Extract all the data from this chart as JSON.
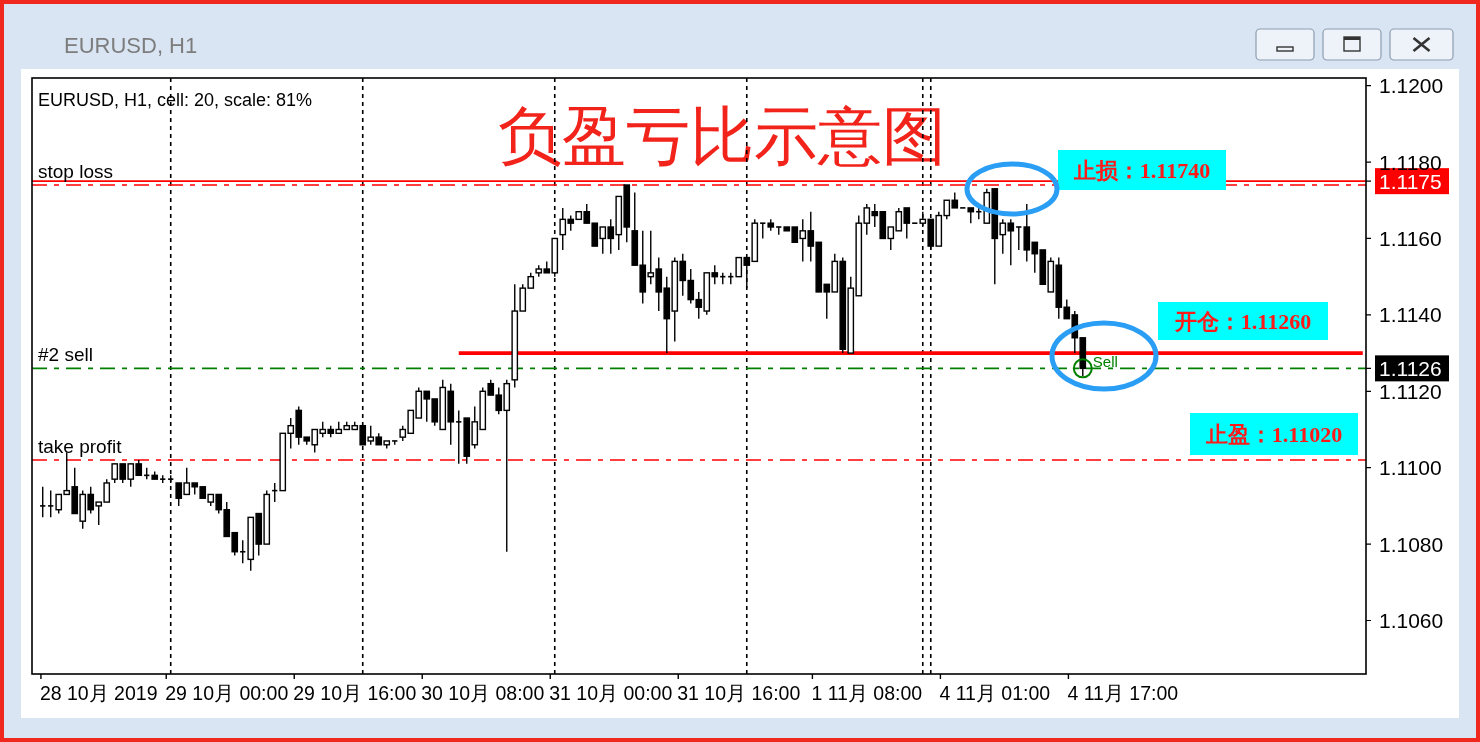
{
  "chart_data": {
    "type": "candlestick",
    "title": "负盈亏比示意图",
    "subtitle": "EURUSD, H1, cell: 20, scale: 81%",
    "annotations": [
      "EURUSD, H1",
      "止损：1.11740",
      "开仓：1.11260",
      "止盈：1.11020"
    ],
    "categories": [
      null,
      null,
      null,
      null,
      null,
      null,
      null,
      "28 10月 2019",
      null,
      null,
      null,
      null,
      null,
      null,
      null,
      null,
      null,
      null,
      null,
      null,
      null,
      null,
      null,
      "29 10月 00:00",
      null,
      null,
      null,
      null,
      null,
      null,
      null,
      null,
      null,
      null,
      null,
      null,
      null,
      null,
      null,
      "29 10月 16:00",
      null,
      null,
      null,
      null,
      null,
      null,
      null,
      null,
      null,
      null,
      null,
      null,
      null,
      null,
      null,
      "30 10月 08:00",
      null,
      null,
      null,
      null,
      null,
      null,
      null,
      null,
      null,
      null,
      null,
      null,
      null,
      null,
      null,
      "31 10月 00:00",
      null,
      null,
      null,
      null,
      null,
      null,
      null,
      null,
      null,
      null,
      null,
      null,
      null,
      null,
      null,
      "31 10月 16:00",
      null,
      null,
      null,
      null,
      null,
      null,
      null,
      null,
      null,
      null,
      null,
      null,
      null,
      null,
      null,
      "1 11月 08:00",
      null,
      null,
      null,
      null,
      null,
      null,
      null,
      null,
      null,
      null,
      null,
      null,
      null,
      null,
      null,
      "4 11月 01:00",
      null,
      null,
      null,
      null,
      null,
      null,
      null,
      null,
      null,
      null,
      null,
      null,
      null,
      null,
      null,
      "4 11月 17:00",
      null,
      null,
      null,
      null,
      null,
      null,
      null,
      null,
      null,
      null,
      null,
      null,
      null,
      null,
      null,
      null,
      null,
      null,
      null,
      null,
      null,
      null,
      null,
      null,
      null,
      null,
      null,
      null,
      null,
      null
    ],
    "ohlc": [
      [
        1.109,
        1.1095,
        1.1087,
        1.109
      ],
      [
        1.109,
        1.1094,
        1.1087,
        1.109
      ],
      [
        1.1089,
        1.1093,
        1.1088,
        1.1093
      ],
      [
        1.1093,
        1.1104,
        1.1093,
        1.1094
      ],
      [
        1.1095,
        1.11,
        1.1088,
        1.1088
      ],
      [
        1.1086,
        1.1094,
        1.1084,
        1.1093
      ],
      [
        1.1093,
        1.1095,
        1.1088,
        1.1089
      ],
      [
        1.109,
        1.1091,
        1.1085,
        1.1091
      ],
      [
        1.1091,
        1.1097,
        1.1091,
        1.1096
      ],
      [
        1.1097,
        1.1101,
        1.1096,
        1.1101
      ],
      [
        1.1101,
        1.1101,
        1.1096,
        1.1097
      ],
      [
        1.1097,
        1.1101,
        1.1095,
        1.1101
      ],
      [
        1.1101,
        1.1102,
        1.1098,
        1.1098
      ],
      [
        1.1098,
        1.11,
        1.1097,
        1.1098
      ],
      [
        1.1098,
        1.1099,
        1.1097,
        1.1097
      ],
      [
        1.1097,
        1.1098,
        1.1096,
        1.1097
      ],
      [
        1.1097,
        1.1098,
        1.1096,
        1.1097
      ],
      [
        1.1096,
        1.1096,
        1.109,
        1.1092
      ],
      [
        1.1093,
        1.11,
        1.1093,
        1.1096
      ],
      [
        1.1096,
        1.1096,
        1.1093,
        1.1095
      ],
      [
        1.1095,
        1.1095,
        1.1092,
        1.1092
      ],
      [
        1.1091,
        1.1093,
        1.109,
        1.1093
      ],
      [
        1.1093,
        1.1093,
        1.1088,
        1.1089
      ],
      [
        1.1089,
        1.1091,
        1.1082,
        1.1082
      ],
      [
        1.1083,
        1.1083,
        1.1077,
        1.1078
      ],
      [
        1.1078,
        1.1081,
        1.1075,
        1.1078
      ],
      [
        1.1076,
        1.1087,
        1.1073,
        1.1087
      ],
      [
        1.1088,
        1.1088,
        1.1077,
        1.108
      ],
      [
        1.108,
        1.1094,
        1.108,
        1.1093
      ],
      [
        1.1094,
        1.1096,
        1.1091,
        1.1094
      ],
      [
        1.1094,
        1.1109,
        1.1094,
        1.1109
      ],
      [
        1.1109,
        1.1113,
        1.1105,
        1.1111
      ],
      [
        1.1115,
        1.1116,
        1.1106,
        1.1108
      ],
      [
        1.1108,
        1.1108,
        1.1106,
        1.1107
      ],
      [
        1.1106,
        1.111,
        1.1104,
        1.111
      ],
      [
        1.1109,
        1.1112,
        1.1108,
        1.111
      ],
      [
        1.111,
        1.1111,
        1.1108,
        1.1109
      ],
      [
        1.1109,
        1.1112,
        1.1109,
        1.111
      ],
      [
        1.111,
        1.1112,
        1.111,
        1.1111
      ],
      [
        1.111,
        1.1112,
        1.111,
        1.1111
      ],
      [
        1.1111,
        1.1111,
        1.1106,
        1.1106
      ],
      [
        1.1107,
        1.1111,
        1.1106,
        1.1108
      ],
      [
        1.1108,
        1.1109,
        1.1106,
        1.1106
      ],
      [
        1.1106,
        1.1107,
        1.1105,
        1.1107
      ],
      [
        1.1107,
        1.1107,
        1.1106,
        1.1107
      ],
      [
        1.1108,
        1.1111,
        1.1107,
        1.111
      ],
      [
        1.1109,
        1.1115,
        1.1109,
        1.1115
      ],
      [
        1.1113,
        1.1121,
        1.1113,
        1.112
      ],
      [
        1.112,
        1.112,
        1.1112,
        1.1118
      ],
      [
        1.1118,
        1.1118,
        1.1111,
        1.1112
      ],
      [
        1.111,
        1.1123,
        1.111,
        1.1121
      ],
      [
        1.112,
        1.1122,
        1.1106,
        1.1112
      ],
      [
        1.1112,
        1.1115,
        1.1101,
        1.1112
      ],
      [
        1.1113,
        1.1113,
        1.1101,
        1.1103
      ],
      [
        1.1106,
        1.1116,
        1.1105,
        1.1112
      ],
      [
        1.111,
        1.1121,
        1.111,
        1.112
      ],
      [
        1.1122,
        1.1123,
        1.1119,
        1.1119
      ],
      [
        1.1119,
        1.1121,
        1.1114,
        1.1115
      ],
      [
        1.1115,
        1.1123,
        1.1078,
        1.1122
      ],
      [
        1.1123,
        1.1148,
        1.1121,
        1.1141
      ],
      [
        1.1141,
        1.1148,
        1.1141,
        1.1147
      ],
      [
        1.1147,
        1.1151,
        1.1147,
        1.115
      ],
      [
        1.1151,
        1.1153,
        1.115,
        1.1152
      ],
      [
        1.1152,
        1.1154,
        1.1151,
        1.1151
      ],
      [
        1.1151,
        1.116,
        1.115,
        1.116
      ],
      [
        1.1161,
        1.1168,
        1.1157,
        1.1165
      ],
      [
        1.1165,
        1.1166,
        1.1162,
        1.1164
      ],
      [
        1.1165,
        1.1167,
        1.1165,
        1.1167
      ],
      [
        1.1167,
        1.1169,
        1.1164,
        1.1164
      ],
      [
        1.1164,
        1.1164,
        1.1158,
        1.1158
      ],
      [
        1.116,
        1.1163,
        1.1156,
        1.1163
      ],
      [
        1.1163,
        1.1165,
        1.1156,
        1.116
      ],
      [
        1.1161,
        1.1171,
        1.1157,
        1.1171
      ],
      [
        1.1174,
        1.1174,
        1.1159,
        1.1163
      ],
      [
        1.1162,
        1.1172,
        1.1153,
        1.1153
      ],
      [
        1.1153,
        1.1162,
        1.1143,
        1.1146
      ],
      [
        1.115,
        1.1162,
        1.1148,
        1.1151
      ],
      [
        1.1152,
        1.1155,
        1.1141,
        1.1146
      ],
      [
        1.1147,
        1.115,
        1.113,
        1.1139
      ],
      [
        1.1141,
        1.1155,
        1.1133,
        1.1154
      ],
      [
        1.1154,
        1.1156,
        1.1145,
        1.1149
      ],
      [
        1.1149,
        1.1152,
        1.1143,
        1.1144
      ],
      [
        1.1144,
        1.1146,
        1.1139,
        1.1142
      ],
      [
        1.1141,
        1.1151,
        1.114,
        1.1151
      ],
      [
        1.1151,
        1.1153,
        1.1148,
        1.115
      ],
      [
        1.115,
        1.1151,
        1.1148,
        1.115
      ],
      [
        1.115,
        1.1151,
        1.1148,
        1.115
      ],
      [
        1.115,
        1.1155,
        1.115,
        1.1155
      ],
      [
        1.1155,
        1.1155,
        1.1147,
        1.1153
      ],
      [
        1.1154,
        1.1165,
        1.1154,
        1.1164
      ],
      [
        1.1164,
        1.1164,
        1.116,
        1.1164
      ],
      [
        1.1164,
        1.1165,
        1.1162,
        1.1163
      ],
      [
        1.1163,
        1.1163,
        1.1161,
        1.1163
      ],
      [
        1.1163,
        1.1163,
        1.1162,
        1.1162
      ],
      [
        1.1163,
        1.1163,
        1.1159,
        1.1159
      ],
      [
        1.116,
        1.1165,
        1.1154,
        1.1162
      ],
      [
        1.1162,
        1.1167,
        1.1154,
        1.1158
      ],
      [
        1.1159,
        1.1159,
        1.1146,
        1.1146
      ],
      [
        1.1148,
        1.1148,
        1.1139,
        1.1146
      ],
      [
        1.1146,
        1.1156,
        1.1146,
        1.1154
      ],
      [
        1.1154,
        1.1155,
        1.113,
        1.1131
      ],
      [
        1.113,
        1.115,
        1.113,
        1.1147
      ],
      [
        1.1145,
        1.1166,
        1.1145,
        1.1164
      ],
      [
        1.1164,
        1.1169,
        1.1161,
        1.1168
      ],
      [
        1.1167,
        1.1169,
        1.1163,
        1.1166
      ],
      [
        1.1167,
        1.1167,
        1.116,
        1.116
      ],
      [
        1.116,
        1.1163,
        1.1157,
        1.1163
      ],
      [
        1.1162,
        1.1168,
        1.1162,
        1.1167
      ],
      [
        1.1168,
        1.1168,
        1.116,
        1.1164
      ],
      [
        1.1164,
        1.1164,
        1.1164,
        1.1164
      ],
      [
        1.1164,
        1.1167,
        1.1163,
        1.1165
      ],
      [
        1.1165,
        1.1165,
        1.1157,
        1.1158
      ],
      [
        1.1158,
        1.1167,
        1.1158,
        1.1166
      ],
      [
        1.1166,
        1.117,
        1.1165,
        1.117
      ],
      [
        1.117,
        1.1172,
        1.1168,
        1.1168
      ],
      [
        1.1168,
        1.1168,
        1.1168,
        1.1168
      ],
      [
        1.1168,
        1.1168,
        1.1164,
        1.1167
      ],
      [
        1.1167,
        1.1168,
        1.1165,
        1.1167
      ],
      [
        1.1164,
        1.1173,
        1.1164,
        1.1172
      ],
      [
        1.1173,
        1.1173,
        1.1148,
        1.116
      ],
      [
        1.1161,
        1.1165,
        1.1156,
        1.1164
      ],
      [
        1.1164,
        1.1165,
        1.1153,
        1.1162
      ],
      [
        1.1163,
        1.1163,
        1.1157,
        1.1163
      ],
      [
        1.1163,
        1.1169,
        1.1154,
        1.1157
      ],
      [
        1.1159,
        1.1159,
        1.1151,
        1.1156
      ],
      [
        1.1157,
        1.1157,
        1.1148,
        1.1148
      ],
      [
        1.1146,
        1.1155,
        1.1146,
        1.1154
      ],
      [
        1.1153,
        1.1155,
        1.1139,
        1.1142
      ],
      [
        1.1142,
        1.1144,
        1.1139,
        1.1139
      ],
      [
        1.114,
        1.1141,
        1.113,
        1.1134
      ],
      [
        1.1134,
        1.1134,
        1.1124,
        1.1126
      ],
      null,
      null,
      null,
      null,
      null,
      null,
      null,
      null,
      null,
      null,
      null,
      null,
      null,
      null,
      null,
      null,
      null,
      null,
      null,
      null,
      null,
      null,
      null,
      null,
      null,
      null,
      null,
      null,
      null,
      null,
      null,
      null,
      null,
      null,
      null
    ],
    "color": "#000000",
    "series": [
      {
        "type": "line",
        "color": "#ff0000",
        "line_style": "solid",
        "values": [
          null,
          null,
          null,
          null,
          null,
          null,
          null,
          null,
          null,
          null,
          null,
          null,
          null,
          null,
          null,
          null,
          null,
          null,
          null,
          null,
          null,
          null,
          null,
          null,
          null,
          null,
          null,
          null,
          null,
          null,
          null,
          null,
          null,
          null,
          null,
          null,
          null,
          null,
          null,
          null,
          null,
          null,
          null,
          null,
          null,
          null,
          null,
          null,
          null,
          null,
          null,
          null,
          1.113,
          1.113,
          1.113,
          1.113,
          1.113,
          1.113,
          1.113,
          1.113,
          1.113,
          1.113,
          1.113,
          1.113,
          1.113,
          1.113,
          1.113,
          1.113,
          1.113,
          1.113,
          1.113,
          1.113,
          1.113,
          1.113,
          1.113,
          1.113,
          1.113,
          1.113,
          1.113,
          1.113,
          1.113,
          1.113,
          1.113,
          1.113,
          1.113,
          1.113,
          1.113,
          1.113,
          1.113,
          1.113,
          1.113,
          1.113,
          1.113,
          1.113,
          1.113,
          1.113,
          1.113,
          1.113,
          1.113,
          1.113,
          1.113,
          1.113,
          1.113,
          1.113,
          1.113,
          1.113,
          1.113,
          1.113,
          1.113,
          1.113,
          1.113,
          1.113,
          1.113,
          1.113,
          1.113,
          1.113,
          1.113,
          1.113,
          1.113,
          1.113,
          1.113,
          1.113,
          1.113,
          1.113,
          1.113,
          1.113,
          1.113,
          1.113,
          1.113,
          1.113,
          1.113,
          1.113,
          1.113,
          1.113,
          1.113,
          1.113,
          1.113,
          1.113,
          1.113,
          1.113,
          1.113,
          1.113,
          1.113,
          1.113,
          1.113,
          1.113,
          1.113,
          1.113,
          1.113,
          1.113,
          1.113,
          1.113,
          1.113,
          1.113,
          1.113,
          1.113,
          1.113,
          1.113,
          1.113,
          1.113,
          1.113,
          1.113,
          1.113,
          1.113,
          1.113,
          1.113
        ]
      },
      {
        "type": "scatter",
        "name": "Sell",
        "color": "#008000",
        "marker": "circle",
        "values": [
          null,
          null,
          null,
          null,
          null,
          null,
          null,
          null,
          null,
          null,
          null,
          null,
          null,
          null,
          null,
          null,
          null,
          null,
          null,
          null,
          null,
          null,
          null,
          null,
          null,
          null,
          null,
          null,
          null,
          null,
          null,
          null,
          null,
          null,
          null,
          null,
          null,
          null,
          null,
          null,
          null,
          null,
          null,
          null,
          null,
          null,
          null,
          null,
          null,
          null,
          null,
          null,
          null,
          null,
          null,
          null,
          null,
          null,
          null,
          null,
          null,
          null,
          null,
          null,
          null,
          null,
          null,
          null,
          null,
          null,
          null,
          null,
          null,
          null,
          null,
          null,
          null,
          null,
          null,
          null,
          null,
          null,
          null,
          null,
          null,
          null,
          null,
          null,
          null,
          null,
          null,
          null,
          null,
          null,
          null,
          null,
          null,
          null,
          null,
          null,
          null,
          null,
          null,
          null,
          null,
          null,
          null,
          null,
          null,
          null,
          null,
          null,
          null,
          null,
          null,
          null,
          null,
          null,
          null,
          null,
          null,
          null,
          null,
          null,
          null,
          null,
          null,
          null,
          null,
          null,
          1.1126,
          null,
          null,
          null,
          null,
          null,
          null,
          null,
          null,
          null,
          null,
          null,
          null,
          null,
          null,
          null,
          null,
          null,
          null,
          null,
          null,
          null,
          null,
          null,
          null,
          null,
          null,
          null,
          null,
          null,
          null,
          null,
          null,
          null,
          null,
          null
        ]
      }
    ],
    "ylim": [
      1.1046,
      1.1202
    ],
    "yticks": [
      {
        "value": 1.106,
        "label": "1.1060"
      },
      {
        "value": 1.108,
        "label": "1.1080"
      },
      {
        "value": 1.11,
        "label": "1.1100"
      },
      {
        "value": 1.112,
        "label": "1.1120"
      },
      {
        "value": 1.1126,
        "label": "1.1126"
      },
      {
        "value": 1.114,
        "label": "1.1140"
      },
      {
        "value": 1.116,
        "label": "1.1160"
      },
      {
        "value": 1.1175,
        "label": "1.1175"
      },
      {
        "value": 1.118,
        "label": "1.1180"
      },
      {
        "value": 1.12,
        "label": "1.1200"
      }
    ],
    "ref_lines": [
      {
        "axis": "y",
        "value": 1.1175,
        "color": "#ff0000",
        "line_style": "solid"
      },
      {
        "axis": "y",
        "value": 1.1174,
        "label": "stop loss",
        "color": "#ff0000",
        "line_style": "dashdot"
      },
      {
        "axis": "y",
        "value": 1.1126,
        "label": "#2 sell",
        "color": "#008000",
        "line_style": "dashdot"
      },
      {
        "axis": "y",
        "value": 1.1102,
        "label": "take profit",
        "color": "#ff0000",
        "line_style": "dashdot"
      }
    ]
  }
}
